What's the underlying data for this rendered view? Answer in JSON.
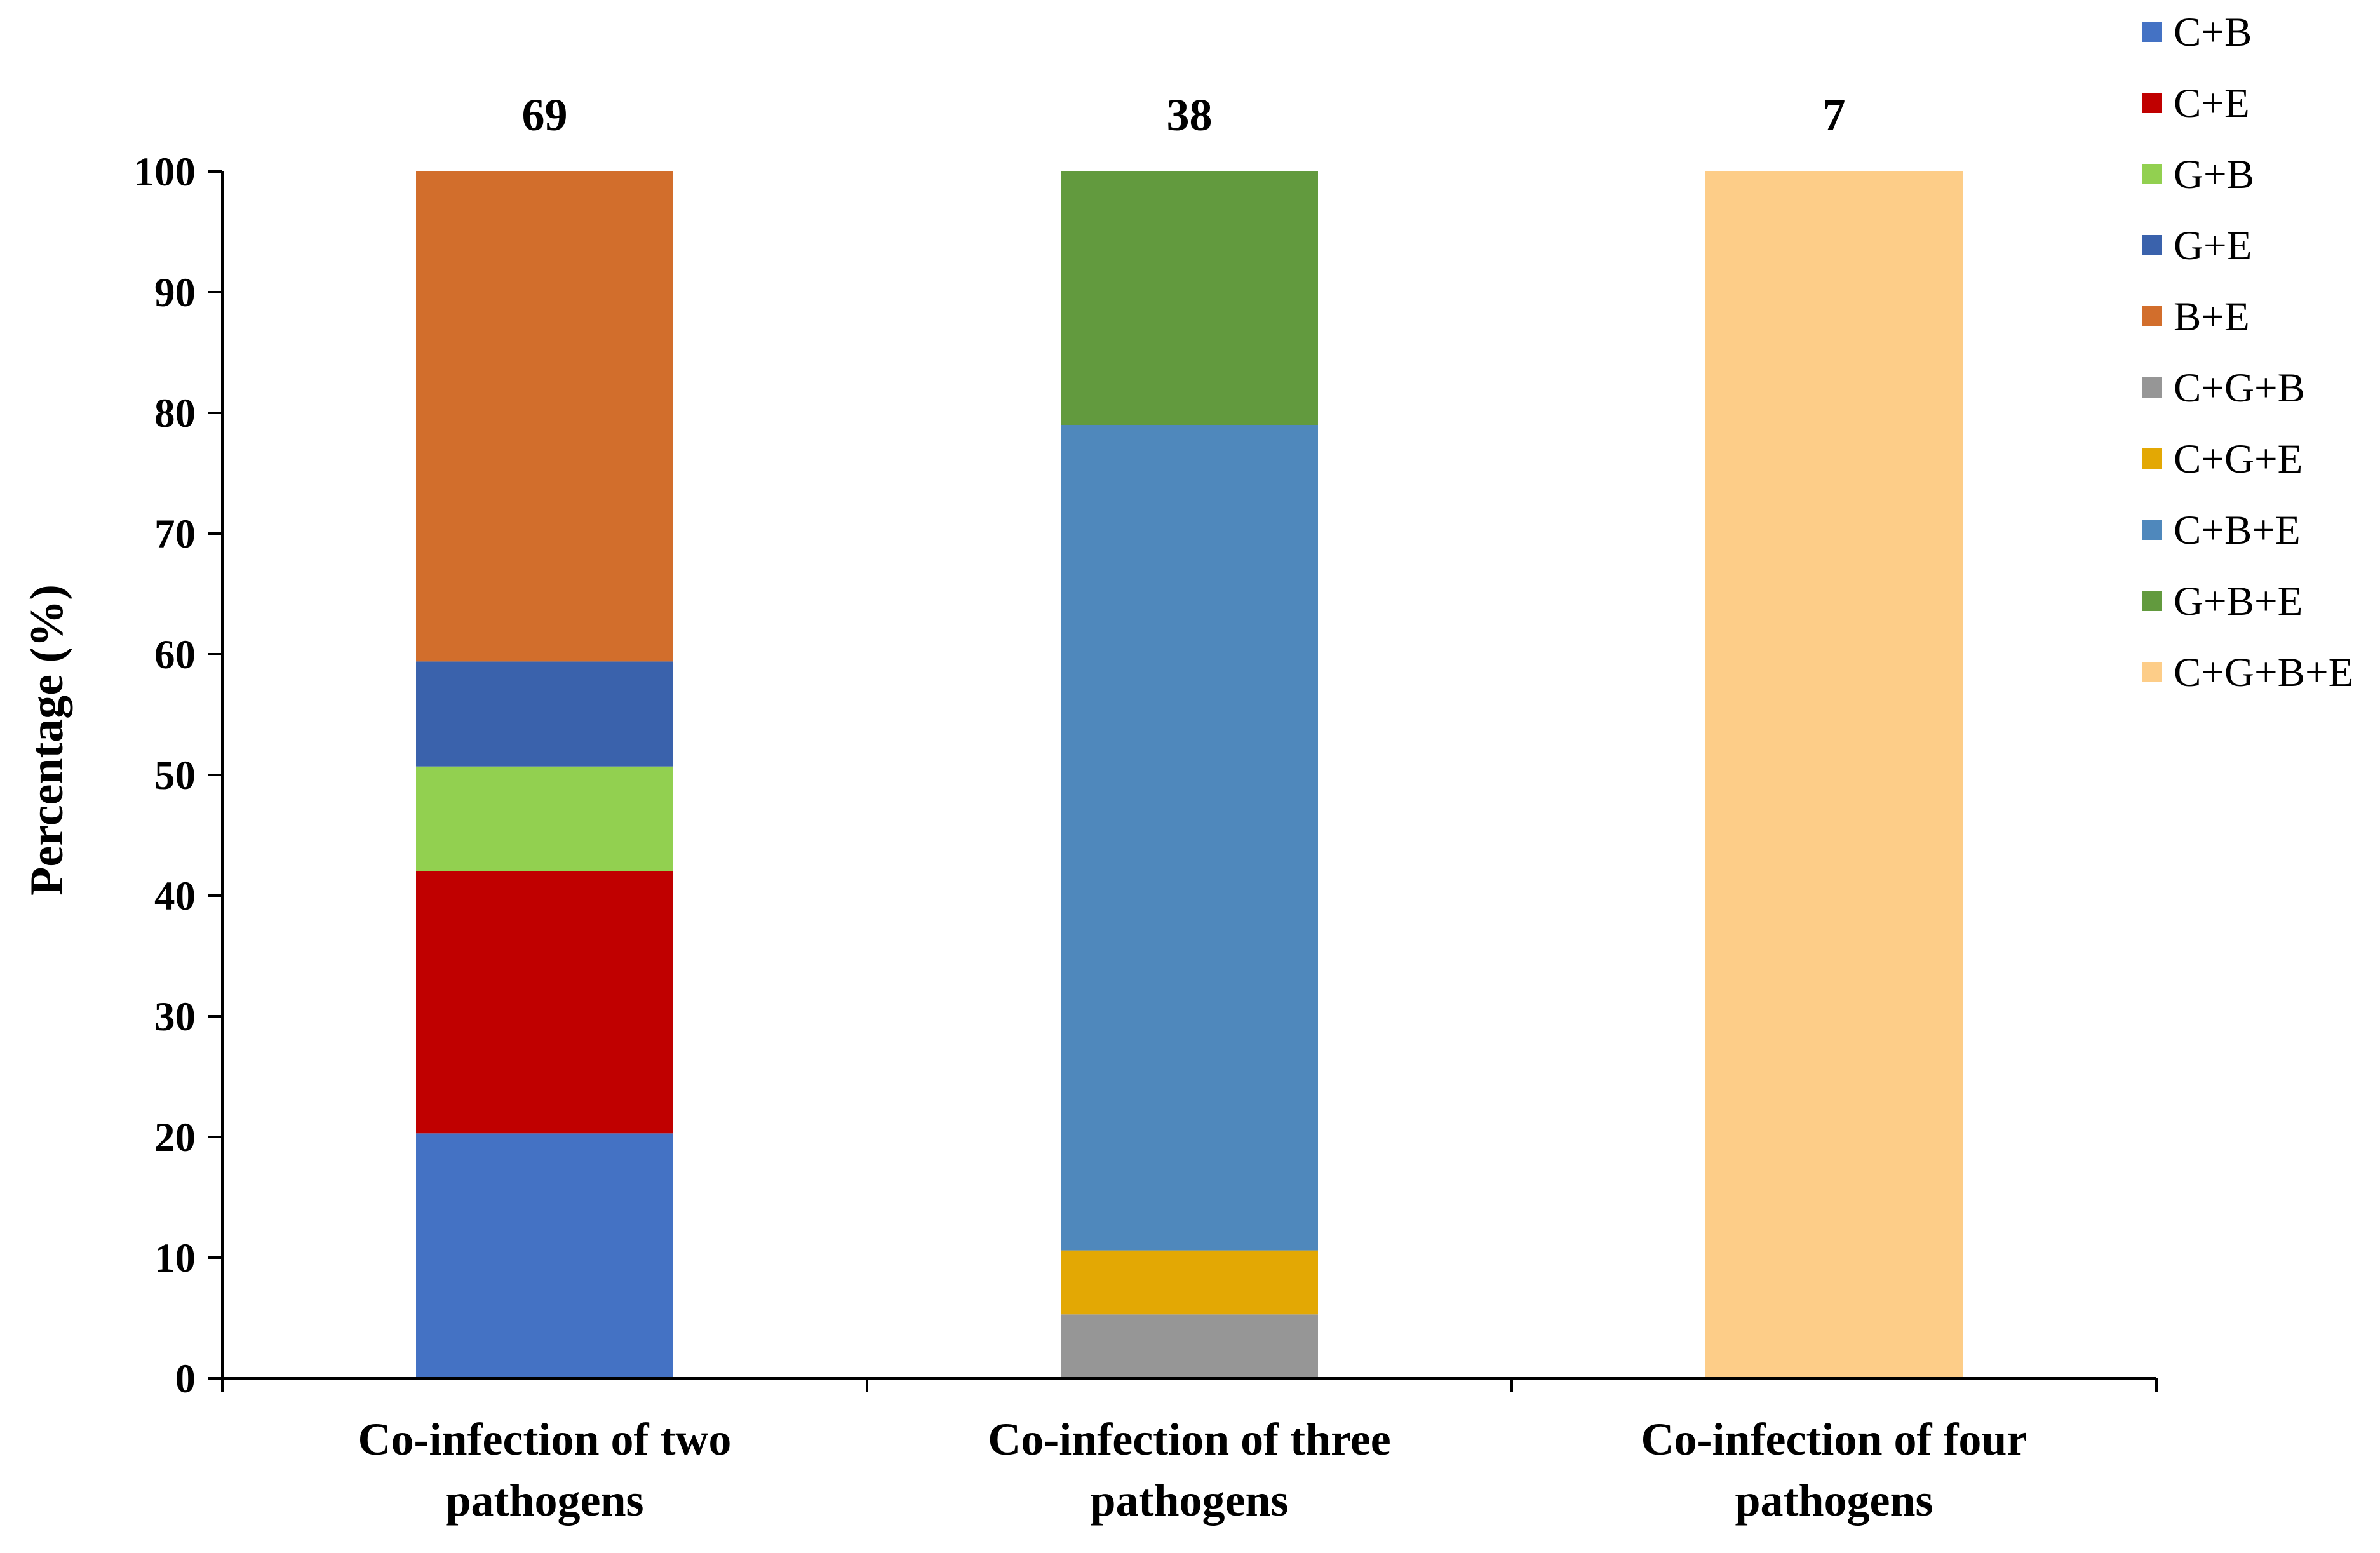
{
  "chart_data": {
    "type": "bar",
    "stacked": true,
    "title": "",
    "xlabel": "",
    "ylabel": "Percentage  (%)",
    "ylim": [
      0,
      100
    ],
    "yticks": [
      0,
      10,
      20,
      30,
      40,
      50,
      60,
      70,
      80,
      90,
      100
    ],
    "grid": false,
    "legend_position": "right",
    "categories": [
      [
        "Co-infection of two",
        "pathogens"
      ],
      [
        "Co-infection of three",
        "pathogens"
      ],
      [
        "Co-infection of four",
        "pathogens"
      ]
    ],
    "counts": [
      "69",
      "38",
      "7"
    ],
    "series": [
      {
        "name": "C+B",
        "color": "#4472C4",
        "values": [
          20.3,
          0,
          0
        ]
      },
      {
        "name": "C+E",
        "color": "#C00000",
        "values": [
          21.7,
          0,
          0
        ]
      },
      {
        "name": "G+B",
        "color": "#92D050",
        "values": [
          8.7,
          0,
          0
        ]
      },
      {
        "name": "G+E",
        "color": "#3A62AC",
        "values": [
          8.7,
          0,
          0
        ]
      },
      {
        "name": "B+E",
        "color": "#D26E2C",
        "values": [
          40.6,
          0,
          0
        ]
      },
      {
        "name": "C+G+B",
        "color": "#969696",
        "values": [
          0,
          5.3,
          0
        ]
      },
      {
        "name": "C+G+E",
        "color": "#E3A804",
        "values": [
          0,
          5.3,
          0
        ]
      },
      {
        "name": "C+B+E",
        "color": "#4F88BC",
        "values": [
          0,
          68.4,
          0
        ]
      },
      {
        "name": "G+B+E",
        "color": "#629A3E",
        "values": [
          0,
          21.0,
          0
        ]
      },
      {
        "name": "C+G+B+E",
        "color": "#FDCD88",
        "values": [
          0,
          0,
          100
        ]
      }
    ]
  }
}
